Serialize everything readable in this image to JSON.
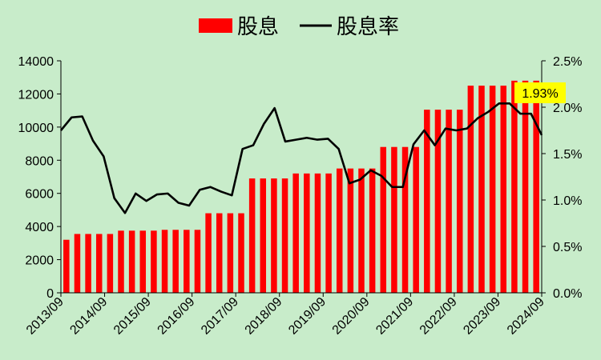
{
  "chart_data": {
    "type": "bar+line",
    "title": "",
    "legend": {
      "placement": "top",
      "entries": [
        "股息",
        "股息率"
      ]
    },
    "x_tick_labels": [
      "2013/09",
      "2014/09",
      "2015/09",
      "2016/09",
      "2017/09",
      "2018/09",
      "2019/09",
      "2020/09",
      "2021/09",
      "2022/09",
      "2023/09",
      "2024/09"
    ],
    "left_axis": {
      "min": 0,
      "max": 14000,
      "ticks": [
        "0",
        "2000",
        "4000",
        "6000",
        "8000",
        "10000",
        "12000",
        "14000"
      ]
    },
    "right_axis": {
      "min": 0,
      "max": 2.5,
      "ticks": [
        "0.0%",
        "0.5%",
        "1.0%",
        "1.5%",
        "2.0%",
        "2.5%"
      ]
    },
    "grid": false,
    "series": [
      {
        "name": "股息",
        "type": "bar",
        "color": "#ff0000",
        "values": [
          3200,
          3550,
          3550,
          3550,
          3550,
          3750,
          3750,
          3750,
          3750,
          3800,
          3800,
          3800,
          3800,
          4800,
          4800,
          4800,
          4800,
          6900,
          6900,
          6900,
          6900,
          7200,
          7200,
          7200,
          7200,
          7500,
          7500,
          7500,
          7500,
          8800,
          8800,
          8800,
          8800,
          11050,
          11050,
          11050,
          11050,
          12500,
          12500,
          12500,
          12500,
          12800,
          12800,
          12800
        ]
      },
      {
        "name": "股息率",
        "type": "line",
        "color": "#000000",
        "values": [
          1.75,
          1.89,
          1.9,
          1.64,
          1.47,
          1.02,
          0.86,
          1.07,
          0.99,
          1.06,
          1.07,
          0.97,
          0.94,
          1.11,
          1.14,
          1.09,
          1.05,
          1.55,
          1.59,
          1.82,
          1.99,
          1.63,
          1.65,
          1.67,
          1.65,
          1.66,
          1.55,
          1.18,
          1.22,
          1.32,
          1.26,
          1.14,
          1.14,
          1.6,
          1.75,
          1.59,
          1.77,
          1.75,
          1.77,
          1.88,
          1.95,
          2.04,
          2.04,
          1.93,
          1.93,
          1.7
        ]
      }
    ],
    "annotation": {
      "text": "1.93%",
      "background": "#ffff00"
    }
  }
}
